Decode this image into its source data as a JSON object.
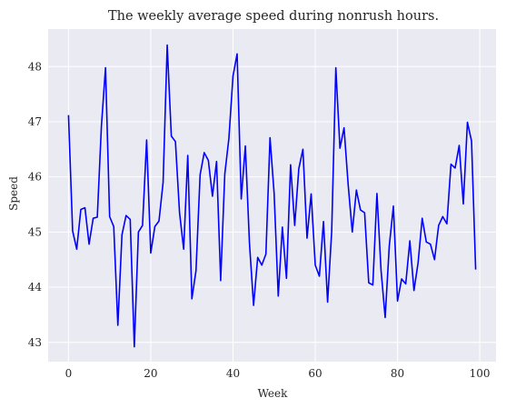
{
  "chart_data": {
    "type": "line",
    "title": "The weekly average speed during nonrush hours.",
    "xlabel": "Week",
    "ylabel": "Speed",
    "xlim": [
      -4.95,
      103.95
    ],
    "ylim": [
      42.65,
      48.68
    ],
    "xticks": [
      0,
      20,
      40,
      60,
      80,
      100
    ],
    "yticks": [
      43,
      44,
      45,
      46,
      47,
      48
    ],
    "grid": true,
    "legend": "none",
    "colors": {
      "line": "#0000ff",
      "background": "#eaeaf2",
      "grid": "#ffffff",
      "text": "#262626"
    },
    "series": [
      {
        "x": [
          0,
          1,
          2,
          3,
          4,
          5,
          6,
          7,
          8,
          9,
          10,
          11,
          12,
          13,
          14,
          15,
          16,
          17,
          18,
          19,
          20,
          21,
          22,
          23,
          24,
          25,
          26,
          27,
          28,
          29,
          30,
          31,
          32,
          33,
          34,
          35,
          36,
          37,
          38,
          39,
          40,
          41,
          42,
          43,
          44,
          45,
          46,
          47,
          48,
          49,
          50,
          51,
          52,
          53,
          54,
          55,
          56,
          57,
          58,
          59,
          60,
          61,
          62,
          63,
          64,
          65,
          66,
          67,
          68,
          69,
          70,
          71,
          72,
          73,
          74,
          75,
          76,
          77,
          78,
          79,
          80,
          81,
          82,
          83,
          84,
          85,
          86,
          87,
          88,
          89,
          90,
          91,
          92,
          93,
          94,
          95,
          96,
          97,
          98,
          99
        ],
        "values": [
          47.12,
          45.02,
          44.69,
          45.41,
          45.44,
          44.78,
          45.25,
          45.27,
          46.92,
          47.98,
          45.28,
          45.1,
          43.31,
          44.95,
          45.3,
          45.23,
          42.92,
          45.0,
          45.12,
          46.67,
          44.62,
          45.1,
          45.2,
          45.9,
          48.39,
          46.74,
          46.64,
          45.35,
          44.69,
          46.39,
          43.79,
          44.3,
          46.04,
          46.44,
          46.3,
          45.65,
          46.28,
          44.12,
          46.05,
          46.7,
          47.83,
          48.23,
          45.6,
          46.56,
          44.8,
          43.67,
          44.54,
          44.4,
          44.6,
          46.71,
          45.7,
          43.84,
          45.09,
          44.16,
          46.22,
          45.12,
          46.15,
          46.5,
          44.89,
          45.69,
          44.4,
          44.2,
          45.19,
          43.73,
          45.02,
          47.98,
          46.52,
          46.89,
          45.86,
          45.0,
          45.76,
          45.4,
          45.35,
          44.08,
          44.04,
          45.7,
          44.3,
          43.45,
          44.75,
          45.47,
          43.75,
          44.15,
          44.06,
          44.84,
          43.94,
          44.44,
          45.25,
          44.82,
          44.78,
          44.5,
          45.12,
          45.28,
          45.15,
          46.23,
          46.16,
          46.57,
          45.51,
          46.99,
          46.65,
          44.32
        ]
      }
    ]
  }
}
